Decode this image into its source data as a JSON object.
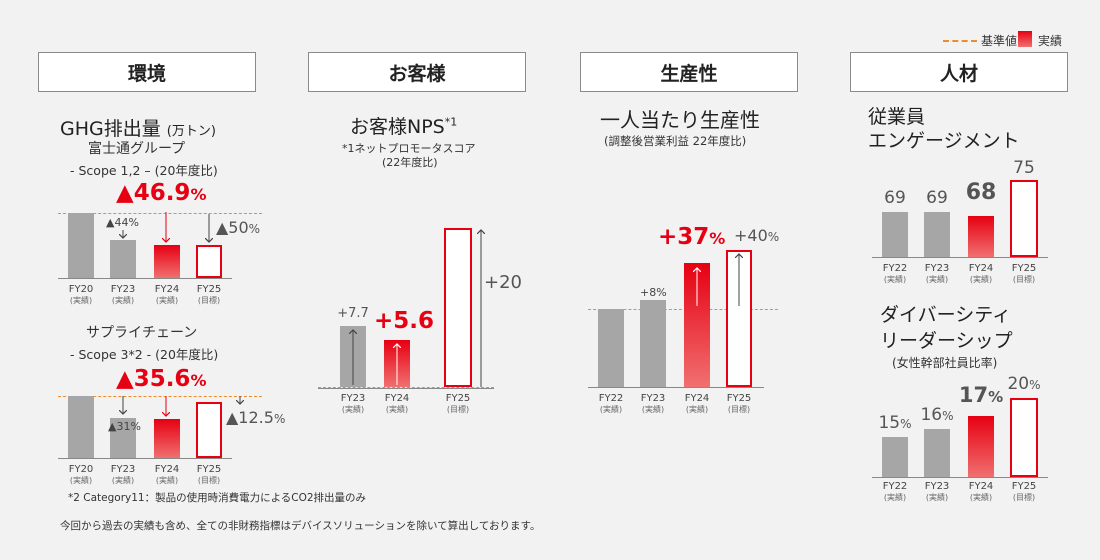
{
  "legend": {
    "baseline": "基準値",
    "actual": "実績"
  },
  "headers": {
    "env": "環境",
    "customer": "お客様",
    "productivity": "生産性",
    "people": "人材"
  },
  "ghg": {
    "title": "GHG排出量",
    "unit": "(万トン)",
    "s1_group": "富士通グループ",
    "s1_scope": "- Scope 1,2 – (20年度比)",
    "s1_big": "▲46.9",
    "s1_big_pct": "%",
    "s1_fy23": "▲44%",
    "s1_fy25": "▲50",
    "s1_fy25_pct": "%",
    "s3_group": "サプライチェーン",
    "s3_scope": "- Scope 3*2 - (20年度比)",
    "s3_big": "▲35.6",
    "s3_big_pct": "%",
    "s3_fy23": "▲31%",
    "s3_fy25": "▲12.5",
    "s3_fy25_pct": "%"
  },
  "nps": {
    "title": "お客様NPS",
    "sup": "*1",
    "note1": "*1ネットプロモータスコア",
    "note2": "(22年度比)",
    "v23": "+7.7",
    "v24": "+5.6",
    "v25": "+20"
  },
  "prod": {
    "title": "一人当たり生産性",
    "sub": "(調整後営業利益 22年度比)",
    "v23": "+8%",
    "v24": "+37",
    "v24_pct": "%",
    "v25": "+40",
    "v25_pct": "%"
  },
  "eng": {
    "title1": "従業員",
    "title2": "エンゲージメント",
    "v22": "69",
    "v23": "69",
    "v24": "68",
    "v25": "75"
  },
  "div": {
    "title1": "ダイバーシティ",
    "title2": "リーダーシップ",
    "sub": "(女性幹部社員比率)",
    "v22": "15",
    "v23": "16",
    "v24": "17",
    "v25": "20",
    "pct": "%"
  },
  "xlabels": {
    "fy20": "FY20",
    "fy22": "FY22",
    "fy23": "FY23",
    "fy24": "FY24",
    "fy25": "FY25",
    "actual": "(実績)",
    "target": "(目標)"
  },
  "footnote2": "*2 Category11：製品の使用時消費電力によるCO2排出量のみ",
  "footer": "今回から過去の実績も含め、全ての非財務指標はデバイスソリューションを除いて算出しております。",
  "colors": {
    "red": "#e60012",
    "gray": "#a6a6a6",
    "baseline": "#f08a2e"
  },
  "chart_data": [
    {
      "type": "bar",
      "title": "GHG排出量 Scope 1,2",
      "categories": [
        "FY20",
        "FY23",
        "FY24",
        "FY25"
      ],
      "values": [
        0,
        -44,
        -46.9,
        -50
      ],
      "unit": "% (20年度比)"
    },
    {
      "type": "bar",
      "title": "GHG排出量 Scope 3",
      "categories": [
        "FY20",
        "FY23",
        "FY24",
        "FY25"
      ],
      "values": [
        0,
        -31,
        -35.6,
        -12.5
      ],
      "unit": "% (20年度比)"
    },
    {
      "type": "bar",
      "title": "お客様NPS",
      "categories": [
        "FY23",
        "FY24",
        "FY25"
      ],
      "values": [
        7.7,
        5.6,
        20
      ],
      "unit": "22年度比"
    },
    {
      "type": "bar",
      "title": "一人当たり生産性",
      "categories": [
        "FY22",
        "FY23",
        "FY24",
        "FY25"
      ],
      "values": [
        0,
        8,
        37,
        40
      ],
      "unit": "%"
    },
    {
      "type": "bar",
      "title": "従業員エンゲージメント",
      "categories": [
        "FY22",
        "FY23",
        "FY24",
        "FY25"
      ],
      "values": [
        69,
        69,
        68,
        75
      ]
    },
    {
      "type": "bar",
      "title": "ダイバーシティ リーダーシップ",
      "categories": [
        "FY22",
        "FY23",
        "FY24",
        "FY25"
      ],
      "values": [
        15,
        16,
        17,
        20
      ],
      "unit": "%"
    }
  ]
}
